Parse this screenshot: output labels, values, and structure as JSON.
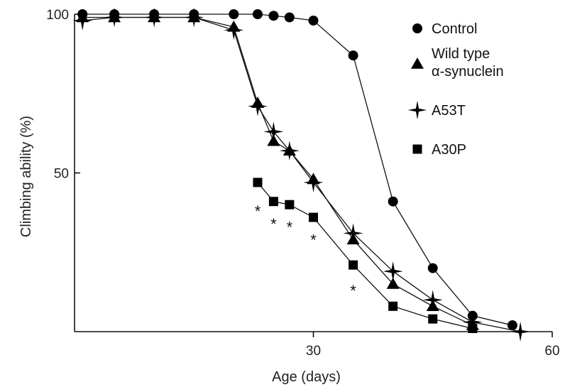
{
  "chart_data": {
    "type": "line",
    "title": "",
    "xlabel": "Age (days)",
    "ylabel": "Climbing ability (%)",
    "xlim": [
      0,
      60
    ],
    "ylim": [
      0,
      100
    ],
    "x_ticks": [
      30,
      60
    ],
    "y_ticks": [
      50,
      100
    ],
    "grid": false,
    "legend_position": "top-right",
    "series": [
      {
        "name": "Control",
        "marker": "circle",
        "x": [
          1,
          5,
          10,
          15,
          20,
          23,
          25,
          27,
          30,
          35,
          40,
          45,
          50,
          55
        ],
        "y": [
          100,
          100,
          100,
          100,
          100,
          100,
          99.5,
          99,
          98,
          87,
          41,
          20,
          5,
          2
        ]
      },
      {
        "name": "Wild type\nα-synuclein",
        "marker": "triangle",
        "x": [
          1,
          5,
          10,
          15,
          20,
          23,
          25,
          27,
          30,
          35,
          40,
          45,
          50
        ],
        "y": [
          99,
          99,
          99,
          99,
          96,
          72,
          60,
          57,
          48,
          29,
          15,
          8,
          2
        ]
      },
      {
        "name": "A53T",
        "marker": "star",
        "x": [
          1,
          5,
          10,
          15,
          20,
          23,
          25,
          27,
          30,
          35,
          40,
          45,
          50,
          56
        ],
        "y": [
          98,
          99,
          99,
          99,
          95,
          71,
          63,
          57,
          47,
          31,
          19,
          10,
          3,
          0
        ]
      },
      {
        "name": "A30P",
        "marker": "square",
        "x": [
          23,
          25,
          27,
          30,
          35,
          40,
          45,
          50
        ],
        "y": [
          47,
          41,
          40,
          36,
          21,
          8,
          4,
          1
        ]
      }
    ],
    "annotations": [
      {
        "text": "*",
        "x": 23,
        "y": 38
      },
      {
        "text": "*",
        "x": 25,
        "y": 34
      },
      {
        "text": "*",
        "x": 27,
        "y": 33
      },
      {
        "text": "*",
        "x": 30,
        "y": 29
      },
      {
        "text": "*",
        "x": 35,
        "y": 13
      }
    ]
  }
}
